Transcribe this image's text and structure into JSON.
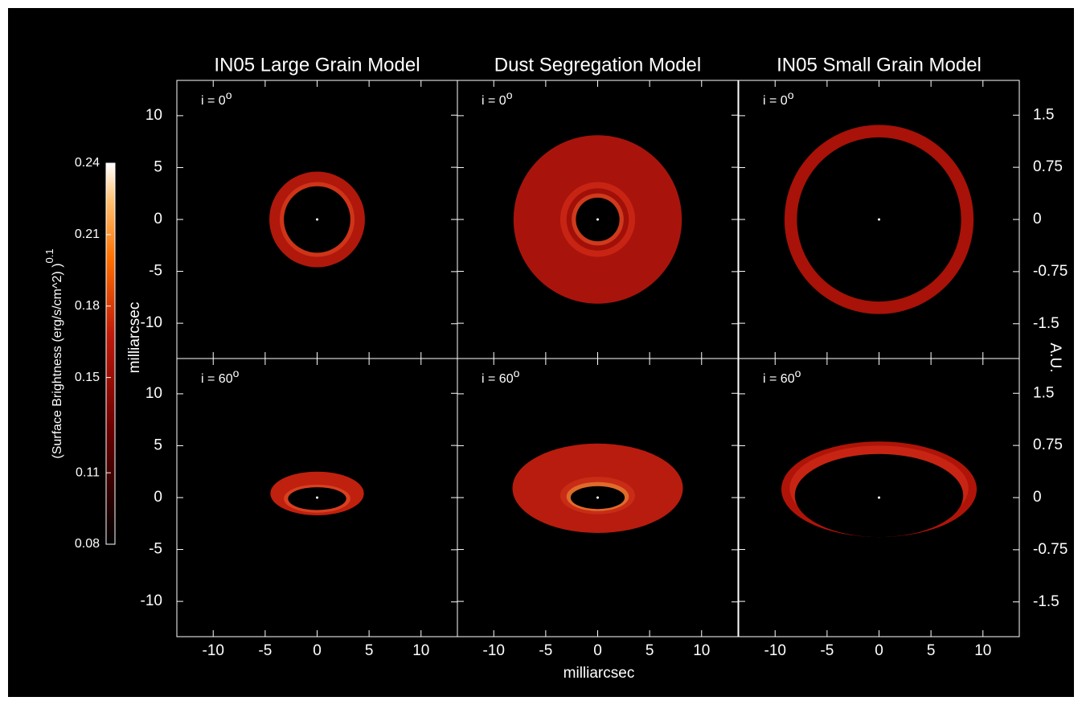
{
  "chart_data": {
    "type": "image-grid",
    "titles": [
      "IN05 Large Grain Model",
      "Dust Segregation Model",
      "IN05 Small Grain Model"
    ],
    "xlabel": "milliarcsec",
    "ylabel": "milliarcsec",
    "y2label": "A.U.",
    "xlim": [
      -13.5,
      13.5
    ],
    "xticks": [
      -10,
      -5,
      0,
      5,
      10
    ],
    "ylim": [
      -13.4,
      13.4
    ],
    "yticks": [
      -10,
      -5,
      0,
      5,
      10
    ],
    "y2lim": [
      -2.0,
      2.0
    ],
    "y2ticks": [
      -1.5,
      -0.75,
      0,
      0.75,
      1.5
    ],
    "rows": [
      {
        "annotation": "i = 0",
        "annotation_sup": "o"
      },
      {
        "annotation": "i = 60",
        "annotation_sup": "o"
      }
    ],
    "colorbar": {
      "label": "(Surface Brightness (erg/s/cm^2) )",
      "label_exponent": "0.1",
      "lim": [
        0.08,
        0.24
      ],
      "ticks": [
        0.08,
        0.11,
        0.15,
        0.18,
        0.21,
        0.24
      ]
    }
  }
}
